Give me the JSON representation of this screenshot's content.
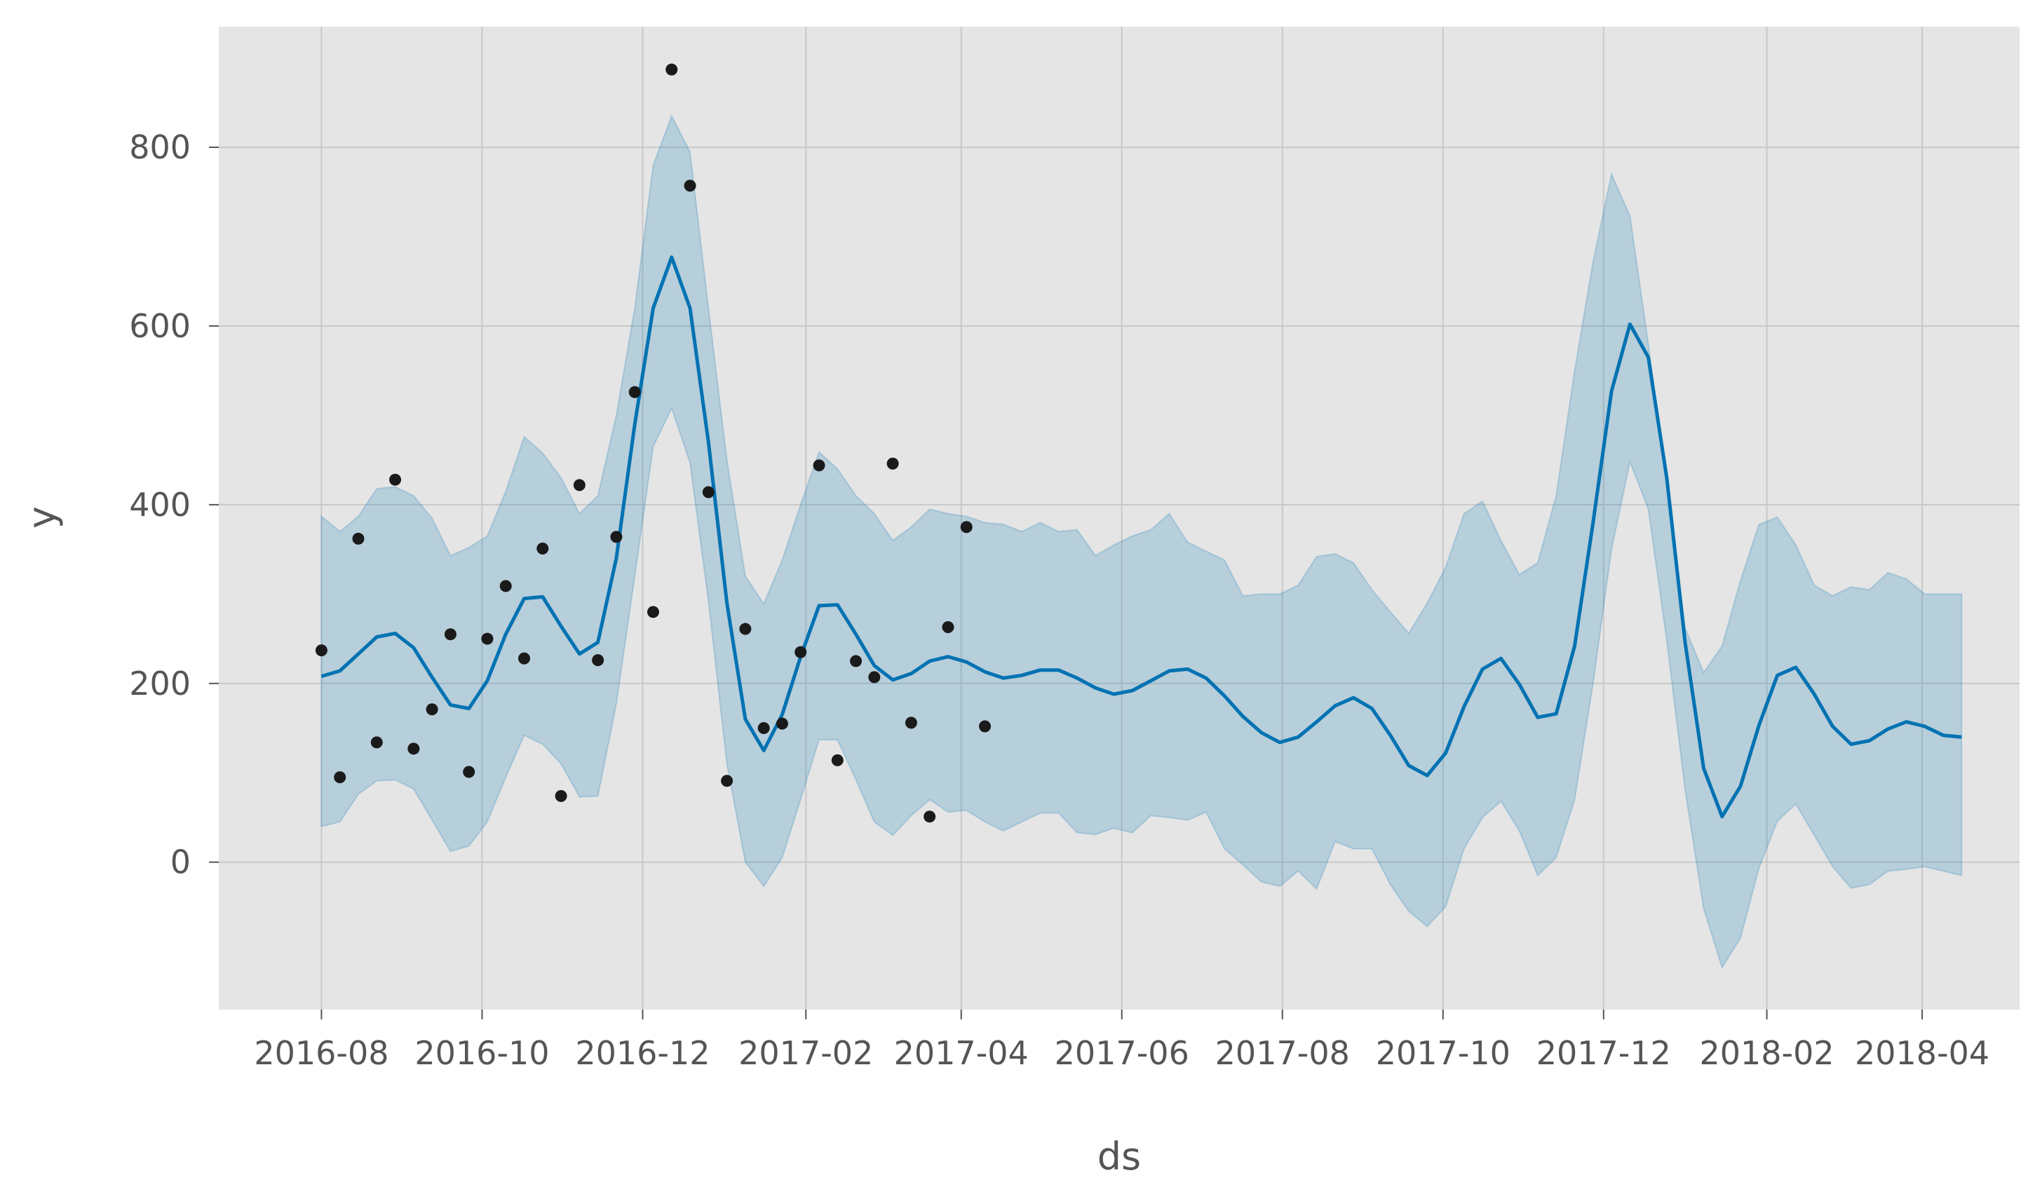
{
  "chart_data": {
    "type": "line",
    "title": "",
    "xlabel": "ds",
    "ylabel": "y",
    "grid": true,
    "colors": {
      "panel_background": "#e5e5e5",
      "grid": "#c8c8c8",
      "forecast_line": "#0072b2",
      "uncertainty_band": "#0072b2",
      "observed_points": "#1a1a1a"
    },
    "xlim": [
      "2016-06-23",
      "2018-05-08"
    ],
    "ylim": [
      -165,
      935
    ],
    "x_ticks": [
      {
        "date": "2016-08-01",
        "label": "2016-08"
      },
      {
        "date": "2016-10-01",
        "label": "2016-10"
      },
      {
        "date": "2016-12-01",
        "label": "2016-12"
      },
      {
        "date": "2017-02-01",
        "label": "2017-02"
      },
      {
        "date": "2017-04-01",
        "label": "2017-04"
      },
      {
        "date": "2017-06-01",
        "label": "2017-06"
      },
      {
        "date": "2017-08-01",
        "label": "2017-08"
      },
      {
        "date": "2017-10-01",
        "label": "2017-10"
      },
      {
        "date": "2017-12-01",
        "label": "2017-12"
      },
      {
        "date": "2018-02-01",
        "label": "2018-02"
      },
      {
        "date": "2018-04-01",
        "label": "2018-04"
      }
    ],
    "y_ticks": [
      0,
      200,
      400,
      600,
      800
    ],
    "observed": [
      {
        "x": "2016-08-01",
        "y": 237
      },
      {
        "x": "2016-08-08",
        "y": 95
      },
      {
        "x": "2016-08-15",
        "y": 362
      },
      {
        "x": "2016-08-22",
        "y": 134
      },
      {
        "x": "2016-08-29",
        "y": 428
      },
      {
        "x": "2016-09-05",
        "y": 127
      },
      {
        "x": "2016-09-12",
        "y": 171
      },
      {
        "x": "2016-09-19",
        "y": 255
      },
      {
        "x": "2016-09-26",
        "y": 101
      },
      {
        "x": "2016-10-03",
        "y": 250
      },
      {
        "x": "2016-10-10",
        "y": 309
      },
      {
        "x": "2016-10-17",
        "y": 228
      },
      {
        "x": "2016-10-24",
        "y": 351
      },
      {
        "x": "2016-10-31",
        "y": 74
      },
      {
        "x": "2016-11-07",
        "y": 422
      },
      {
        "x": "2016-11-14",
        "y": 226
      },
      {
        "x": "2016-11-21",
        "y": 364
      },
      {
        "x": "2016-11-28",
        "y": 526
      },
      {
        "x": "2016-12-05",
        "y": 280
      },
      {
        "x": "2016-12-12",
        "y": 887
      },
      {
        "x": "2016-12-19",
        "y": 757
      },
      {
        "x": "2016-12-26",
        "y": 414
      },
      {
        "x": "2017-01-02",
        "y": 91
      },
      {
        "x": "2017-01-09",
        "y": 261
      },
      {
        "x": "2017-01-16",
        "y": 150
      },
      {
        "x": "2017-01-23",
        "y": 155
      },
      {
        "x": "2017-01-30",
        "y": 235
      },
      {
        "x": "2017-02-06",
        "y": 444
      },
      {
        "x": "2017-02-13",
        "y": 114
      },
      {
        "x": "2017-02-20",
        "y": 225
      },
      {
        "x": "2017-02-27",
        "y": 207
      },
      {
        "x": "2017-03-06",
        "y": 446
      },
      {
        "x": "2017-03-13",
        "y": 156
      },
      {
        "x": "2017-03-20",
        "y": 51
      },
      {
        "x": "2017-03-27",
        "y": 263
      },
      {
        "x": "2017-04-03",
        "y": 375
      },
      {
        "x": "2017-04-10",
        "y": 152
      }
    ],
    "forecast": {
      "x": [
        "2016-08-01",
        "2016-08-08",
        "2016-08-15",
        "2016-08-22",
        "2016-08-29",
        "2016-09-05",
        "2016-09-12",
        "2016-09-19",
        "2016-09-26",
        "2016-10-03",
        "2016-10-10",
        "2016-10-17",
        "2016-10-24",
        "2016-10-31",
        "2016-11-07",
        "2016-11-14",
        "2016-11-21",
        "2016-11-28",
        "2016-12-05",
        "2016-12-12",
        "2016-12-19",
        "2016-12-26",
        "2017-01-02",
        "2017-01-09",
        "2017-01-16",
        "2017-01-23",
        "2017-01-30",
        "2017-02-06",
        "2017-02-13",
        "2017-02-20",
        "2017-02-27",
        "2017-03-06",
        "2017-03-13",
        "2017-03-20",
        "2017-03-27",
        "2017-04-03",
        "2017-04-10",
        "2017-04-17",
        "2017-04-24",
        "2017-05-01",
        "2017-05-08",
        "2017-05-15",
        "2017-05-22",
        "2017-05-29",
        "2017-06-05",
        "2017-06-12",
        "2017-06-19",
        "2017-06-26",
        "2017-07-03",
        "2017-07-10",
        "2017-07-17",
        "2017-07-24",
        "2017-07-31",
        "2017-08-07",
        "2017-08-14",
        "2017-08-21",
        "2017-08-28",
        "2017-09-04",
        "2017-09-11",
        "2017-09-18",
        "2017-09-25",
        "2017-10-02",
        "2017-10-09",
        "2017-10-16",
        "2017-10-23",
        "2017-10-30",
        "2017-11-06",
        "2017-11-13",
        "2017-11-20",
        "2017-11-27",
        "2017-12-04",
        "2017-12-11",
        "2017-12-18",
        "2017-12-25",
        "2018-01-01",
        "2018-01-08",
        "2018-01-15",
        "2018-01-22",
        "2018-01-29",
        "2018-02-05",
        "2018-02-12",
        "2018-02-19",
        "2018-02-26",
        "2018-03-05",
        "2018-03-12",
        "2018-03-19",
        "2018-03-26",
        "2018-04-02",
        "2018-04-09",
        "2018-04-16"
      ],
      "yhat": [
        208,
        214,
        233,
        252,
        256,
        240,
        207,
        176,
        172,
        203,
        255,
        295,
        297,
        264,
        233,
        246,
        340,
        490,
        620,
        677,
        620,
        470,
        290,
        160,
        125,
        165,
        230,
        287,
        288,
        255,
        220,
        204,
        211,
        225,
        230,
        224,
        213,
        206,
        209,
        215,
        215,
        206,
        195,
        188,
        192,
        203,
        214,
        216,
        206,
        186,
        163,
        145,
        134,
        140,
        157,
        175,
        184,
        172,
        142,
        108,
        97,
        122,
        174,
        216,
        228,
        199,
        162,
        166,
        242,
        380,
        527,
        602,
        565,
        430,
        245,
        105,
        51,
        85,
        153,
        209,
        218,
        188,
        152,
        132,
        136,
        149,
        157,
        152,
        142,
        140
      ],
      "yhat_lower": [
        40,
        45,
        76,
        91,
        92,
        82,
        47,
        12,
        18,
        45,
        95,
        142,
        132,
        110,
        73,
        74,
        177,
        320,
        465,
        508,
        447,
        292,
        110,
        0,
        -27,
        5,
        70,
        137,
        137,
        92,
        45,
        30,
        52,
        70,
        56,
        58,
        45,
        35,
        45,
        55,
        55,
        33,
        31,
        38,
        33,
        52,
        50,
        47,
        56,
        15,
        -3,
        -22,
        -27,
        -10,
        -30,
        23,
        15,
        15,
        -25,
        -55,
        -72,
        -50,
        15,
        50,
        68,
        35,
        -15,
        5,
        70,
        200,
        350,
        448,
        395,
        248,
        80,
        -52,
        -118,
        -85,
        -7,
        46,
        65,
        30,
        -5,
        -29,
        -25,
        -10,
        -8,
        -5,
        -10,
        -15
      ],
      "yhat_upper": [
        387,
        370,
        387,
        418,
        420,
        410,
        385,
        343,
        352,
        365,
        415,
        476,
        458,
        430,
        390,
        410,
        500,
        620,
        780,
        835,
        795,
        620,
        450,
        320,
        289,
        338,
        400,
        459,
        440,
        410,
        390,
        360,
        375,
        395,
        390,
        387,
        380,
        378,
        370,
        380,
        370,
        372,
        343,
        355,
        365,
        372,
        390,
        358,
        348,
        338,
        298,
        300,
        300,
        310,
        342,
        345,
        335,
        305,
        280,
        256,
        290,
        330,
        390,
        404,
        360,
        322,
        335,
        410,
        550,
        672,
        770,
        723,
        580,
        420,
        262,
        212,
        242,
        315,
        378,
        386,
        355,
        310,
        298,
        308,
        305,
        324,
        317,
        300,
        300,
        300
      ]
    }
  }
}
